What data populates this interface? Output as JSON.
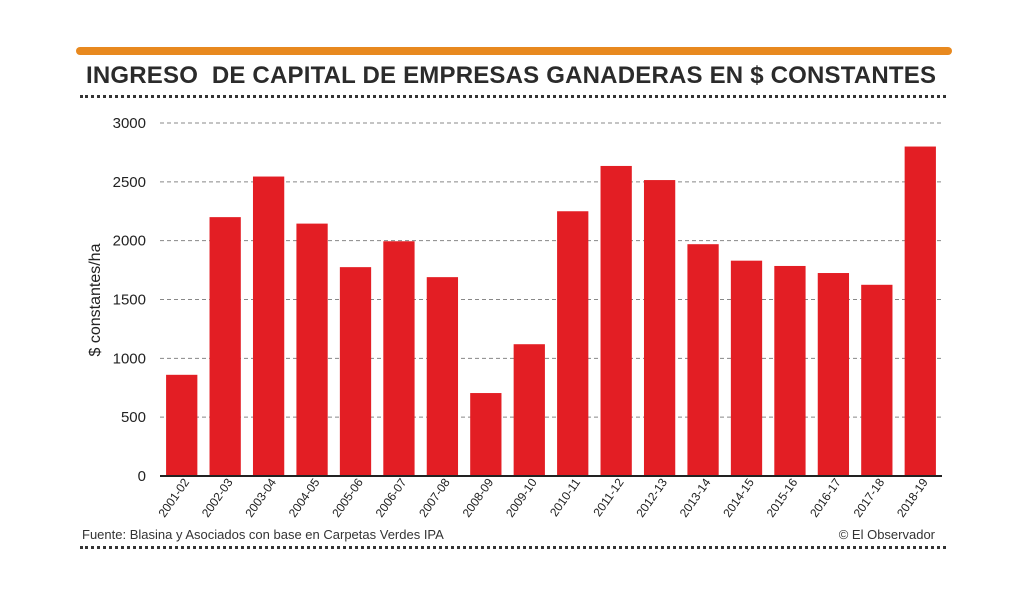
{
  "header": {
    "title": "INGRESO  DE CAPITAL DE EMPRESAS GANADERAS EN $ CONSTANTES",
    "accent_color": "#e8891f"
  },
  "footer": {
    "source": "Fuente: Blasina y Asociados con base en Carpetas Verdes IPA",
    "credit": "© El Observador"
  },
  "chart_data": {
    "type": "bar",
    "title": "INGRESO  DE CAPITAL DE EMPRESAS GANADERAS EN $ CONSTANTES",
    "xlabel": "",
    "ylabel": "$ constantes/ha",
    "ylim": [
      0,
      3000
    ],
    "yticks": [
      0,
      500,
      1000,
      1500,
      2000,
      2500,
      3000
    ],
    "grid": true,
    "bar_color": "#e31e24",
    "categories": [
      "2001-02",
      "2002-03",
      "2003-04",
      "2004-05",
      "2005-06",
      "2006-07",
      "2007-08",
      "2008-09",
      "2009-10",
      "2010-11",
      "2011-12",
      "2012-13",
      "2013-14",
      "2014-15",
      "2015-16",
      "2016-17",
      "2017-18",
      "2018-19"
    ],
    "values": [
      860,
      2200,
      2545,
      2145,
      1775,
      1995,
      1690,
      705,
      1120,
      2250,
      2635,
      2515,
      1970,
      1830,
      1785,
      1725,
      1625,
      2800
    ]
  }
}
